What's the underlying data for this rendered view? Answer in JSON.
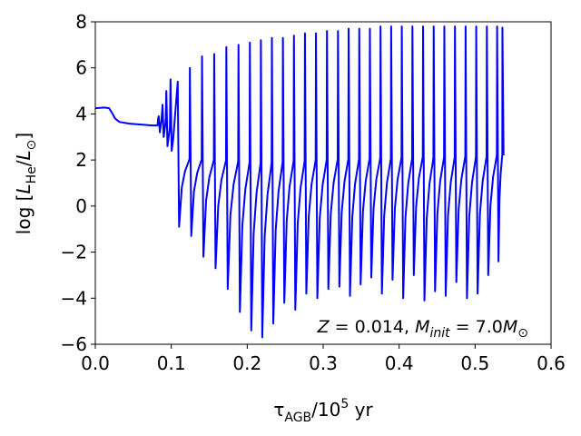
{
  "chart_data": {
    "type": "line",
    "xlabel": "τAGB/10^5 yr",
    "xlabel_parts": {
      "symbol": "τ",
      "sub": "AGB",
      "mid": "/10",
      "sup": "5",
      "unit": " yr"
    },
    "ylabel": "log [LHe/L⊙]",
    "ylabel_parts": {
      "pre": "log  [",
      "L1": "L",
      "sub1": "He",
      "slash": "/",
      "L2": "L",
      "sub2": "⊙",
      "post": "]"
    },
    "xlim": [
      0.0,
      0.6
    ],
    "ylim": [
      -6,
      8
    ],
    "xticks": [
      "0.0",
      "0.1",
      "0.2",
      "0.3",
      "0.4",
      "0.5",
      "0.6"
    ],
    "xtick_values": [
      0.0,
      0.1,
      0.2,
      0.3,
      0.4,
      0.5,
      0.6
    ],
    "yticks": [
      "−6",
      "−4",
      "−2",
      "0",
      "2",
      "4",
      "6",
      "8"
    ],
    "ytick_values": [
      -6,
      -4,
      -2,
      0,
      2,
      4,
      6,
      8
    ],
    "grid": false,
    "line_color": "#0000ff",
    "annotation": "Z = 0.014, Minit = 7.0M⊙",
    "annotation_parts": {
      "z": "Z",
      "zval": " = 0.014, ",
      "m": "M",
      "msub": "init",
      "mval": " = 7.0",
      "m2": "M",
      "m2sub": "⊙"
    },
    "early_phase": [
      [
        0.0,
        4.25
      ],
      [
        0.012,
        4.28
      ],
      [
        0.018,
        4.25
      ],
      [
        0.022,
        4.05
      ],
      [
        0.026,
        3.8
      ],
      [
        0.032,
        3.65
      ],
      [
        0.045,
        3.58
      ],
      [
        0.06,
        3.54
      ],
      [
        0.075,
        3.5
      ],
      [
        0.082,
        3.5
      ]
    ],
    "early_pulses": [
      {
        "x": 0.0835,
        "peak": 3.9,
        "min": 3.2
      },
      {
        "x": 0.0885,
        "peak": 4.4,
        "min": 3.0
      },
      {
        "x": 0.0935,
        "peak": 5.0,
        "min": 2.6
      },
      {
        "x": 0.099,
        "peak": 5.5,
        "min": 2.4
      }
    ],
    "thermal_pulses": [
      {
        "x": 0.1085,
        "peak": 5.4,
        "min": -0.9
      },
      {
        "x": 0.1245,
        "peak": 6.0,
        "min": -1.3
      },
      {
        "x": 0.1405,
        "peak": 6.5,
        "min": -2.2
      },
      {
        "x": 0.1565,
        "peak": 6.6,
        "min": -2.7
      },
      {
        "x": 0.1725,
        "peak": 6.9,
        "min": -3.6
      },
      {
        "x": 0.1885,
        "peak": 7.0,
        "min": -4.6
      },
      {
        "x": 0.2035,
        "peak": 7.1,
        "min": -5.4
      },
      {
        "x": 0.218,
        "peak": 7.2,
        "min": -5.7
      },
      {
        "x": 0.2325,
        "peak": 7.3,
        "min": -5.1
      },
      {
        "x": 0.247,
        "peak": 7.3,
        "min": -4.2
      },
      {
        "x": 0.2615,
        "peak": 7.4,
        "min": -4.5
      },
      {
        "x": 0.276,
        "peak": 7.5,
        "min": -3.8
      },
      {
        "x": 0.2905,
        "peak": 7.5,
        "min": -4.0
      },
      {
        "x": 0.305,
        "peak": 7.6,
        "min": -3.6
      },
      {
        "x": 0.3195,
        "peak": 7.6,
        "min": -3.5
      },
      {
        "x": 0.3335,
        "peak": 7.7,
        "min": -3.9
      },
      {
        "x": 0.3475,
        "peak": 7.7,
        "min": -3.4
      },
      {
        "x": 0.3615,
        "peak": 7.7,
        "min": -3.1
      },
      {
        "x": 0.3755,
        "peak": 7.8,
        "min": -3.8
      },
      {
        "x": 0.3895,
        "peak": 7.8,
        "min": -3.2
      },
      {
        "x": 0.4035,
        "peak": 7.8,
        "min": -4.0
      },
      {
        "x": 0.4175,
        "peak": 7.8,
        "min": -3.0
      },
      {
        "x": 0.4315,
        "peak": 7.8,
        "min": -4.1
      },
      {
        "x": 0.4455,
        "peak": 7.8,
        "min": -3.7
      },
      {
        "x": 0.4595,
        "peak": 7.8,
        "min": -3.9
      },
      {
        "x": 0.4735,
        "peak": 7.8,
        "min": -3.3
      },
      {
        "x": 0.4875,
        "peak": 7.8,
        "min": -4.0
      },
      {
        "x": 0.5015,
        "peak": 7.8,
        "min": -3.8
      },
      {
        "x": 0.5155,
        "peak": 7.8,
        "min": -3.0
      },
      {
        "x": 0.529,
        "peak": 7.8,
        "min": -2.4
      }
    ],
    "final_segment": [
      [
        0.536,
        7.75
      ],
      [
        0.5375,
        2.2
      ]
    ]
  }
}
